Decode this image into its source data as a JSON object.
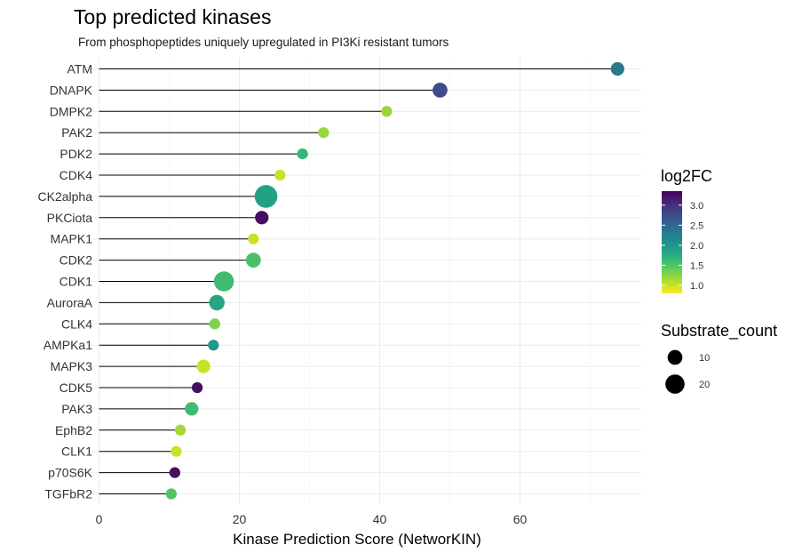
{
  "chart_data": {
    "type": "scatter",
    "title": "Top predicted kinases",
    "subtitle": "From phosphopeptides uniquely upregulated in PI3Ki resistant tumors",
    "xlabel": "Kinase Prediction Score (NetworKIN)",
    "ylabel": "",
    "xlim": [
      -1.5,
      78
    ],
    "xticks": [
      0,
      20,
      40,
      60
    ],
    "grid": true,
    "legend_position": "right",
    "points": [
      {
        "kinase": "ATM",
        "score": 73.9,
        "log2FC": 2.32,
        "substrate_count": 6
      },
      {
        "kinase": "DNAPK",
        "score": 48.6,
        "log2FC": 2.75,
        "substrate_count": 8
      },
      {
        "kinase": "DMPK2",
        "score": 41.0,
        "log2FC": 1.2,
        "substrate_count": 3
      },
      {
        "kinase": "PAK2",
        "score": 32.0,
        "log2FC": 1.2,
        "substrate_count": 3
      },
      {
        "kinase": "PDK2",
        "score": 29.0,
        "log2FC": 1.65,
        "substrate_count": 3
      },
      {
        "kinase": "CDK4",
        "score": 25.8,
        "log2FC": 1.0,
        "substrate_count": 3
      },
      {
        "kinase": "CK2alpha",
        "score": 23.8,
        "log2FC": 1.9,
        "substrate_count": 25
      },
      {
        "kinase": "PKCiota",
        "score": 23.2,
        "log2FC": 3.25,
        "substrate_count": 6
      },
      {
        "kinase": "MAPK1",
        "score": 22.0,
        "log2FC": 1.0,
        "substrate_count": 3
      },
      {
        "kinase": "CDK2",
        "score": 22.0,
        "log2FC": 1.55,
        "substrate_count": 8
      },
      {
        "kinase": "CDK1",
        "score": 17.8,
        "log2FC": 1.6,
        "substrate_count": 18
      },
      {
        "kinase": "AuroraA",
        "score": 16.8,
        "log2FC": 1.85,
        "substrate_count": 9
      },
      {
        "kinase": "CLK4",
        "score": 16.5,
        "log2FC": 1.3,
        "substrate_count": 3
      },
      {
        "kinase": "AMPKa1",
        "score": 16.3,
        "log2FC": 2.0,
        "substrate_count": 3
      },
      {
        "kinase": "MAPK3",
        "score": 14.9,
        "log2FC": 1.0,
        "substrate_count": 6
      },
      {
        "kinase": "CDK5",
        "score": 14.0,
        "log2FC": 3.25,
        "substrate_count": 3
      },
      {
        "kinase": "PAK3",
        "score": 13.2,
        "log2FC": 1.6,
        "substrate_count": 6
      },
      {
        "kinase": "EphB2",
        "score": 11.6,
        "log2FC": 1.15,
        "substrate_count": 3
      },
      {
        "kinase": "CLK1",
        "score": 11.0,
        "log2FC": 1.0,
        "substrate_count": 3
      },
      {
        "kinase": "p70S6K",
        "score": 10.8,
        "log2FC": 3.25,
        "substrate_count": 3
      },
      {
        "kinase": "TGFbR2",
        "score": 10.3,
        "log2FC": 1.5,
        "substrate_count": 3
      }
    ],
    "legend_color": {
      "title": "log2FC",
      "min": 0.8,
      "max": 3.35,
      "ticks": [
        "1.0",
        "1.5",
        "2.0",
        "2.5",
        "3.0"
      ],
      "palette": [
        "#fde725",
        "#b5de2b",
        "#6ece58",
        "#35b779",
        "#1f9e89",
        "#26828e",
        "#31688e",
        "#3e4989",
        "#482878",
        "#440154"
      ]
    },
    "legend_size": {
      "title": "Substrate_count",
      "entries": [
        {
          "label": "10",
          "value": 10
        },
        {
          "label": "20",
          "value": 20
        }
      ]
    }
  }
}
